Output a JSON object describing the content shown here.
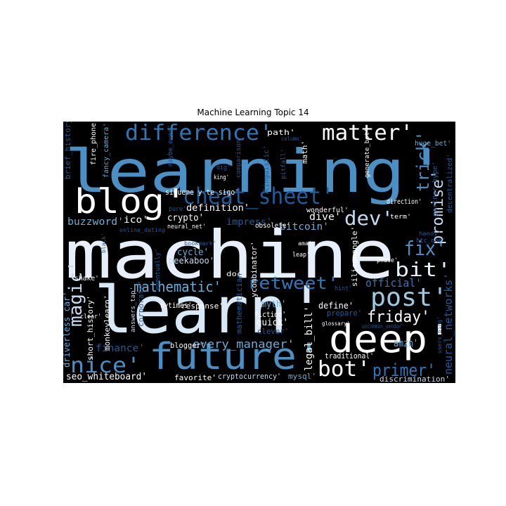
{
  "figure": {
    "title": "Machine Learning Topic 14"
  },
  "wordcloud": {
    "background": "#000000",
    "words": [
      {
        "text": "learning'",
        "color": "#4a90c4"
      },
      {
        "text": "machine",
        "color": "#e7f0fa"
      },
      {
        "text": "learn'",
        "color": "#d9e8f5"
      },
      {
        "text": "future'",
        "color": "#4a90c4"
      },
      {
        "text": "deep'",
        "color": "#ffffff"
      },
      {
        "text": "blog'",
        "color": "#ffffff"
      },
      {
        "text": "cheat_sheet'",
        "color": "#1f5c99"
      },
      {
        "text": "difference'",
        "color": "#2f78b8"
      },
      {
        "text": "matter'",
        "color": "#ffffff"
      },
      {
        "text": "post'",
        "color": "#9ecae1"
      },
      {
        "text": "magic'",
        "color": "#c6dbef"
      },
      {
        "text": "nice'",
        "color": "#4a90c4"
      },
      {
        "text": "dev'",
        "color": "#c6dbef"
      },
      {
        "text": "trick'",
        "color": "#4a90c4"
      },
      {
        "text": "fix'",
        "color": "#4a90c4"
      },
      {
        "text": "bit'",
        "color": "#e7f0fa"
      },
      {
        "text": "promise'",
        "color": "#c6dbef"
      },
      {
        "text": "retweet'",
        "color": "#2f78b8"
      },
      {
        "text": "mathematic'",
        "color": "#6baed6"
      },
      {
        "text": "friday'",
        "color": "#ffffff"
      },
      {
        "text": "bot'",
        "color": "#ffffff"
      },
      {
        "text": "primer'",
        "color": "#2f78b8"
      },
      {
        "text": "buzzword'",
        "color": "#6baed6"
      },
      {
        "text": "official'",
        "color": "#2f78b8"
      },
      {
        "text": "every_manager'",
        "color": "#6baed6"
      },
      {
        "text": "finance'",
        "color": "#1f5c99"
      },
      {
        "text": "neural_networks'",
        "color": "#1f5c99"
      },
      {
        "text": "bitcoin'",
        "color": "#6baed6"
      },
      {
        "text": "sigueme y te sigo'",
        "color": "#ffffff"
      },
      {
        "text": "definition'",
        "color": "#ffffff"
      },
      {
        "text": "dive'",
        "color": "#ffffff"
      },
      {
        "text": "crypto'",
        "color": "#ffffff"
      },
      {
        "text": "impress'",
        "color": "#1f5c99"
      },
      {
        "text": "ico'",
        "color": "#ffffff"
      },
      {
        "text": "cycle'",
        "color": "#6baed6"
      },
      {
        "text": "peekaboo'",
        "color": "#c6dbef"
      },
      {
        "text": "path'",
        "color": "#ffffff"
      },
      {
        "text": "seo_whiteboard'",
        "color": "#ffffff"
      },
      {
        "text": "favorite'",
        "color": "#ffffff"
      },
      {
        "text": "cryptocurrency'",
        "color": "#c6dbef"
      },
      {
        "text": "mysql'",
        "color": "#6baed6"
      },
      {
        "text": "discrimination'",
        "color": "#c6dbef"
      },
      {
        "text": "traditional'",
        "color": "#ffffff"
      },
      {
        "text": "amzn'",
        "color": "#6baed6"
      },
      {
        "text": "legal_bill'",
        "color": "#ffffff"
      },
      {
        "text": "define'",
        "color": "#ffffff"
      },
      {
        "text": "prepare'",
        "color": "#1f5c99"
      },
      {
        "text": "blogger'",
        "color": "#ffffff"
      },
      {
        "text": "nytimes'",
        "color": "#ffffff"
      },
      {
        "text": "quick'",
        "color": "#ffffff"
      },
      {
        "text": "fiction'",
        "color": "#ffffff"
      },
      {
        "text": "myth'",
        "color": "#6baed6"
      },
      {
        "text": "clever'",
        "color": "#1f5c99"
      },
      {
        "text": "response'",
        "color": "#ffffff"
      },
      {
        "text": "mathematician'",
        "color": "#1f5c99"
      },
      {
        "text": "corporate'",
        "color": "#1f5c99"
      },
      {
        "text": "monkeylearn'",
        "color": "#ffffff"
      },
      {
        "text": "short_history'",
        "color": "#ffffff"
      },
      {
        "text": "driverless_car'",
        "color": "#6baed6"
      },
      {
        "text": "answers_tap'",
        "color": "#c6dbef"
      },
      {
        "text": "shake'",
        "color": "#ffffff"
      },
      {
        "text": "brief_history'",
        "color": "#1f5c99"
      },
      {
        "text": "fire_phone'",
        "color": "#ffffff"
      },
      {
        "text": "fancy_camera'",
        "color": "#6baed6"
      },
      {
        "text": "maybe_even'",
        "color": "#1f5c99"
      },
      {
        "text": "dig'",
        "color": "#1f5c99"
      },
      {
        "text": "king'",
        "color": "#ffffff"
      },
      {
        "text": "comparison'",
        "color": "#1f5c99"
      },
      {
        "text": "linguistic'",
        "color": "#1f5c99"
      },
      {
        "text": "pitfall'",
        "color": "#1f5c99"
      },
      {
        "text": "math'",
        "color": "#ffffff"
      },
      {
        "text": "column'",
        "color": "#1f5c99"
      },
      {
        "text": "generate_bot'",
        "color": "#ffffff"
      },
      {
        "text": "huge_bet'",
        "color": "#6baed6"
      },
      {
        "text": "gartner_hype'",
        "color": "#1f5c99"
      },
      {
        "text": "decentralized'",
        "color": "#1f5c99"
      },
      {
        "text": "htc_one'",
        "color": "#1f5c99"
      },
      {
        "text": "direction'",
        "color": "#ffffff"
      },
      {
        "text": "term'",
        "color": "#ffffff"
      },
      {
        "text": "wonderful'",
        "color": "#ffffff"
      },
      {
        "text": "obsolete'",
        "color": "#ffffff"
      },
      {
        "text": "pure'",
        "color": "#1f5c99"
      },
      {
        "text": "neural_net'",
        "color": "#ffffff"
      },
      {
        "text": "online_dating",
        "color": "#1f5c99"
      },
      {
        "text": "bookmark'",
        "color": "#1f5c99"
      },
      {
        "text": "doc'",
        "color": "#ffffff"
      },
      {
        "text": "ycombinator'",
        "color": "#ffffff"
      },
      {
        "text": "siliconangle'",
        "color": "#ffffff"
      },
      {
        "text": "ama'",
        "color": "#ffffff"
      },
      {
        "text": "leap'",
        "color": "#ffffff"
      },
      {
        "text": "phase'",
        "color": "#ffffff"
      },
      {
        "text": "handy'",
        "color": "#1f5c99"
      },
      {
        "text": "hint'",
        "color": "#1f5c99"
      },
      {
        "text": "glossary'",
        "color": "#ffffff"
      },
      {
        "text": "users_bing'",
        "color": "#1f5c99"
      },
      {
        "text": "eventually'",
        "color": "#1f5c99"
      },
      {
        "text": "black'",
        "color": "#1f5c99"
      },
      {
        "text": "clear'",
        "color": "#ffffff"
      },
      {
        "text": "uncommon_vendor'",
        "color": "#1f5c99"
      }
    ]
  }
}
